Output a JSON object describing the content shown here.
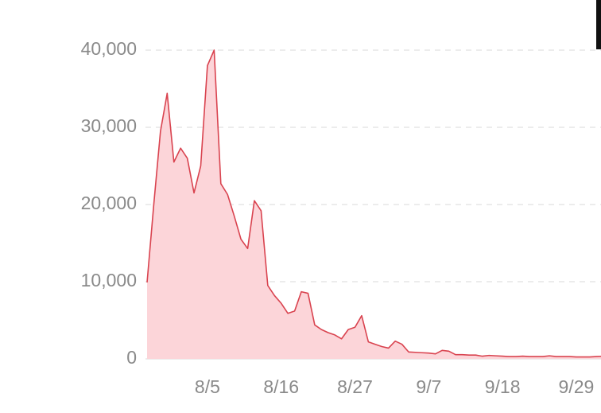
{
  "chart_data": {
    "type": "area",
    "categories": [
      null,
      null,
      null,
      null,
      null,
      null,
      null,
      null,
      null,
      "8/5",
      null,
      null,
      null,
      null,
      null,
      null,
      null,
      null,
      null,
      null,
      "8/16",
      null,
      null,
      null,
      null,
      null,
      null,
      null,
      null,
      null,
      null,
      "8/27",
      null,
      null,
      null,
      null,
      null,
      null,
      null,
      null,
      null,
      null,
      "9/7",
      null,
      null,
      null,
      null,
      null,
      null,
      null,
      null,
      null,
      null,
      "9/18",
      null,
      null,
      null,
      null,
      null,
      null,
      null,
      null,
      null,
      null,
      "9/29",
      null,
      null,
      null,
      null
    ],
    "values": [
      9900,
      20000,
      29500,
      34400,
      25500,
      27300,
      26000,
      21500,
      25000,
      38000,
      40000,
      22700,
      21300,
      18500,
      15500,
      14300,
      20500,
      19200,
      9500,
      8200,
      7200,
      5900,
      6200,
      8700,
      8500,
      4400,
      3800,
      3400,
      3100,
      2600,
      3800,
      4100,
      5600,
      2200,
      1900,
      1600,
      1400,
      2300,
      1900,
      900,
      850,
      800,
      750,
      650,
      1100,
      1000,
      550,
      550,
      500,
      500,
      350,
      450,
      400,
      350,
      300,
      300,
      350,
      300,
      300,
      300,
      400,
      300,
      300,
      300,
      250,
      250,
      250,
      300,
      350
    ],
    "color": "#d9434f",
    "fill_color": "#fcd5d9",
    "ylim": [
      0,
      40000
    ],
    "yticks": [
      0,
      {
        "value": 10000,
        "label": "10,000"
      },
      {
        "value": 20000,
        "label": "20,000"
      },
      {
        "value": 30000,
        "label": "30,000"
      },
      {
        "value": 40000,
        "label": "40,000"
      }
    ],
    "grid": true
  }
}
